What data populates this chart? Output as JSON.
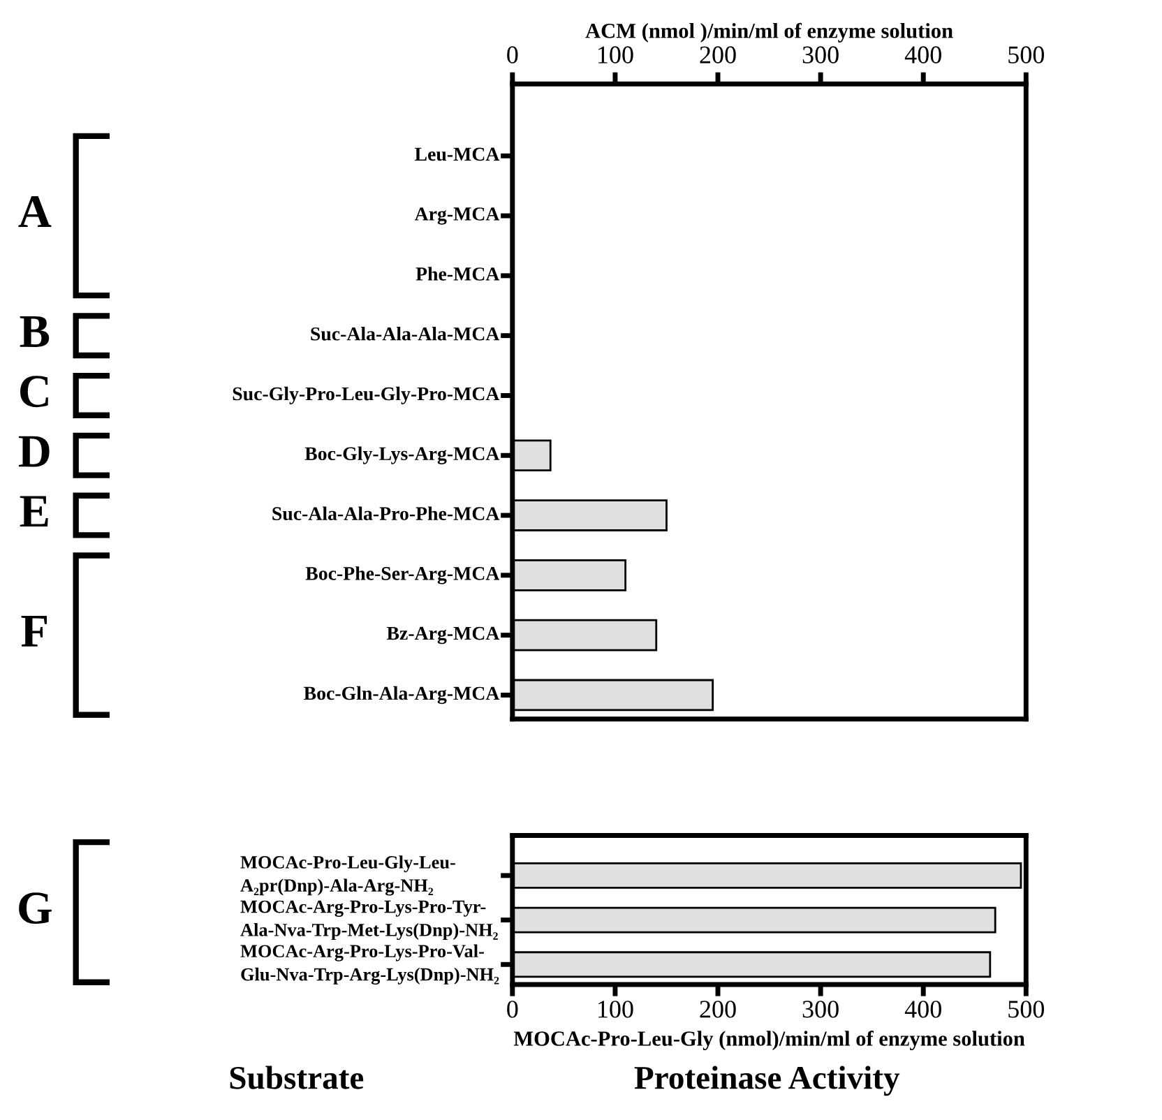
{
  "chart_data": [
    {
      "type": "bar",
      "orientation": "horizontal",
      "xlabel": "ACM (nmol )/min/ml of enzyme solution",
      "categories": [
        "Leu-MCA",
        "Arg-MCA",
        "Phe-MCA",
        "Suc-Ala-Ala-Ala-MCA",
        "Suc-Gly-Pro-Leu-Gly-Pro-MCA",
        "Boc-Gly-Lys-Arg-MCA",
        "Suc-Ala-Ala-Pro-Phe-MCA",
        "Boc-Phe-Ser-Arg-MCA",
        "Bz-Arg-MCA",
        "Boc-Gln-Ala-Arg-MCA"
      ],
      "values": [
        0,
        0,
        0,
        0,
        0,
        37,
        150,
        110,
        140,
        195
      ],
      "color": "#e0e0e0",
      "xlim": [
        0,
        500
      ],
      "xticks": [
        0,
        100,
        200,
        300,
        400,
        500
      ],
      "grid": false,
      "annotations": [
        "A",
        "B",
        "C",
        "D",
        "E",
        "F"
      ]
    },
    {
      "type": "bar",
      "orientation": "horizontal",
      "xlabel": "MOCAc-Pro-Leu-Gly (nmol)/min/ml of enzyme solution",
      "categories": [
        "MOCAc-Pro-Leu-Gly-Leu-\nA₂pr(Dnp)-Ala-Arg-NH₂",
        "MOCAc-Arg-Pro-Lys-Pro-Tyr-\nAla-Nva-Trp-Met-Lys(Dnp)-NH₂",
        "MOCAc-Arg-Pro-Lys-Pro-Val-\nGlu-Nva-Trp-Arg-Lys(Dnp)-NH₂"
      ],
      "values": [
        495,
        470,
        465
      ],
      "color": "#e0e0e0",
      "xlim": [
        0,
        500
      ],
      "xticks": [
        0,
        100,
        200,
        300,
        400,
        500
      ],
      "grid": false,
      "annotations": [
        "G",
        "Substrate",
        "Proteinase Activity"
      ]
    }
  ]
}
